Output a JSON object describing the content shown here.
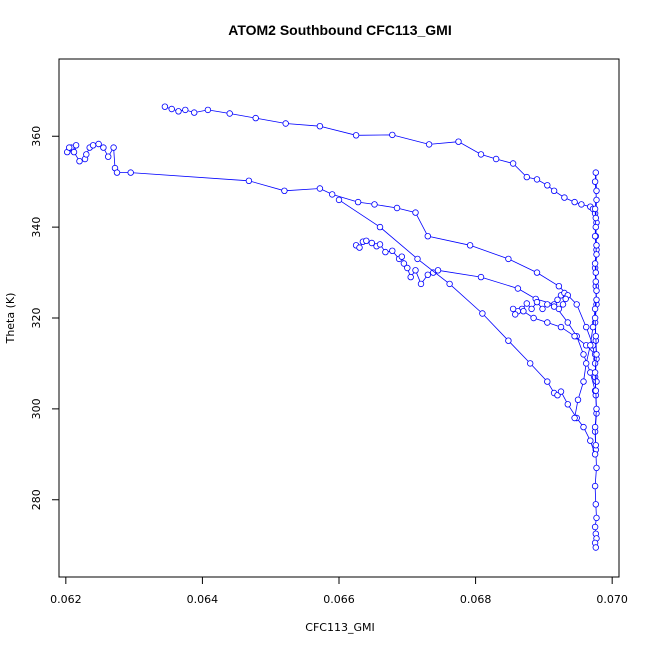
{
  "chart_data": {
    "type": "scatter",
    "title": "ATOM2 Southbound CFC113_GMI",
    "xlabel": "CFC113_GMI",
    "ylabel": "Theta (K)",
    "xlim": [
      0.0619,
      0.0701
    ],
    "ylim": [
      263,
      377
    ],
    "xticks": [
      0.062,
      0.064,
      0.066,
      0.068,
      0.07
    ],
    "xtick_labels": [
      "0.062",
      "0.064",
      "0.066",
      "0.068",
      "0.070"
    ],
    "yticks": [
      280,
      300,
      320,
      340,
      360
    ],
    "ytick_labels": [
      "280",
      "300",
      "320",
      "340",
      "360"
    ],
    "grid": false,
    "legend": "none",
    "series_color": "#0000ff",
    "marker": "open-circle",
    "connected": true,
    "series": [
      {
        "x": [
          0.06345,
          0.06355,
          0.06365,
          0.06375,
          0.06388,
          0.06408,
          0.0644,
          0.06478,
          0.06522,
          0.06572,
          0.06625,
          0.06678,
          0.06732,
          0.06775,
          0.06808,
          0.0683,
          0.06855,
          0.06875,
          0.0689,
          0.06905,
          0.06915,
          0.0693,
          0.06945,
          0.06955,
          0.06968,
          0.06972,
          0.06975,
          0.06977,
          0.06976,
          0.06977,
          0.06975,
          0.06976,
          0.06977,
          0.06975,
          0.06976,
          0.06977,
          0.06975,
          0.06976,
          0.06977,
          0.06975,
          0.06976,
          0.06977,
          0.06975,
          0.06976,
          0.06977,
          0.06975,
          0.06976,
          0.06977,
          0.06975,
          0.06976
        ],
        "y": [
          366.5,
          366.0,
          365.5,
          365.8,
          365.2,
          365.8,
          365.0,
          364.0,
          362.8,
          362.2,
          360.2,
          360.3,
          358.2,
          358.8,
          356.0,
          355.0,
          354.0,
          351.0,
          350.5,
          349.2,
          348.0,
          346.5,
          345.5,
          345.0,
          344.5,
          344.0,
          343.0,
          341.0,
          338.0,
          335.0,
          331.0,
          327.0,
          323.0,
          319.0,
          315.0,
          311.0,
          307.0,
          303.0,
          299.0,
          295.0,
          291.0,
          287.0,
          283.0,
          279.0,
          276.0,
          274.0,
          272.5,
          271.5,
          270.5,
          269.5
        ]
      },
      {
        "x": [
          0.0621,
          0.06202,
          0.06208,
          0.06215,
          0.06205,
          0.06212,
          0.0622,
          0.06228,
          0.0623,
          0.06235,
          0.0624,
          0.06248,
          0.06255,
          0.06262,
          0.0627,
          0.06272,
          0.06275,
          0.06295,
          0.06468,
          0.0652,
          0.06572,
          0.0659,
          0.06628,
          0.06652,
          0.06685,
          0.06712,
          0.0673,
          0.06792,
          0.06848,
          0.0689,
          0.06922,
          0.06948,
          0.06962,
          0.06972,
          0.06975,
          0.06977
        ],
        "y": [
          357.0,
          356.5,
          357.5,
          358.0,
          357.5,
          356.5,
          354.5,
          355.0,
          356.0,
          357.5,
          358.0,
          358.3,
          357.5,
          355.5,
          357.5,
          353.0,
          352.0,
          352.0,
          350.2,
          348.0,
          348.5,
          347.2,
          345.5,
          345.0,
          344.2,
          343.2,
          338.0,
          336.0,
          333.0,
          330.0,
          327.0,
          323.0,
          318.0,
          314.0,
          310.0,
          306.0
        ]
      },
      {
        "x": [
          0.06625,
          0.0663,
          0.06635,
          0.0664,
          0.06648,
          0.06655,
          0.0666,
          0.06668,
          0.06678,
          0.06688,
          0.06692,
          0.06695,
          0.067,
          0.06705,
          0.06712,
          0.0672,
          0.0673,
          0.06738,
          0.06745,
          0.06808,
          0.06862,
          0.06888,
          0.06915,
          0.06935,
          0.06948,
          0.06958,
          0.06968,
          0.06975
        ],
        "y": [
          336.0,
          335.5,
          336.8,
          337.0,
          336.5,
          335.8,
          336.2,
          334.5,
          334.8,
          333.0,
          333.5,
          332.0,
          331.0,
          329.0,
          330.5,
          327.5,
          329.5,
          330.0,
          330.5,
          329.0,
          326.5,
          324.2,
          323.0,
          319.0,
          316.0,
          312.0,
          308.0,
          304.0
        ]
      },
      {
        "x": [
          0.0692,
          0.06925,
          0.0693,
          0.06935,
          0.06932,
          0.06928,
          0.06922,
          0.06915,
          0.06905,
          0.06898,
          0.0689,
          0.06882,
          0.06875,
          0.06868,
          0.06862,
          0.06858,
          0.06855,
          0.0687,
          0.06885,
          0.06905,
          0.06925,
          0.06945,
          0.06962,
          0.06975
        ],
        "y": [
          324.0,
          325.0,
          325.5,
          325.0,
          324.2,
          323.0,
          322.0,
          322.5,
          323.0,
          322.0,
          323.5,
          322.0,
          323.2,
          322.0,
          321.5,
          320.8,
          322.0,
          321.5,
          320.0,
          319.0,
          318.0,
          316.0,
          314.0,
          312.0
        ]
      },
      {
        "x": [
          0.066,
          0.0666,
          0.06715,
          0.06762,
          0.0681,
          0.06848,
          0.0688,
          0.06905,
          0.06915,
          0.0692,
          0.06925,
          0.06935,
          0.06948,
          0.06958,
          0.06968,
          0.06975
        ],
        "y": [
          346.0,
          340.0,
          333.0,
          327.5,
          321.0,
          315.0,
          310.0,
          306.0,
          303.5,
          303.0,
          303.8,
          301.0,
          298.0,
          296.0,
          293.0,
          290.0
        ]
      },
      {
        "x": [
          0.06945,
          0.0695,
          0.06958,
          0.06962,
          0.06968,
          0.06972,
          0.06975,
          0.06977,
          0.06976,
          0.06977,
          0.06975,
          0.06976,
          0.06977,
          0.06975,
          0.06976,
          0.06977,
          0.06975,
          0.06976,
          0.06977,
          0.06975,
          0.06976,
          0.06977,
          0.06975,
          0.06976,
          0.06977,
          0.06975,
          0.06976,
          0.06977,
          0.06975,
          0.06976
        ],
        "y": [
          298.0,
          302.0,
          306.0,
          310.0,
          314.0,
          318.0,
          322.0,
          326.0,
          330.0,
          334.0,
          338.0,
          342.0,
          346.0,
          350.0,
          352.0,
          348.0,
          344.0,
          340.0,
          336.0,
          332.0,
          328.0,
          324.0,
          320.0,
          316.0,
          312.0,
          308.0,
          304.0,
          300.0,
          296.0,
          292.0
        ]
      }
    ]
  }
}
